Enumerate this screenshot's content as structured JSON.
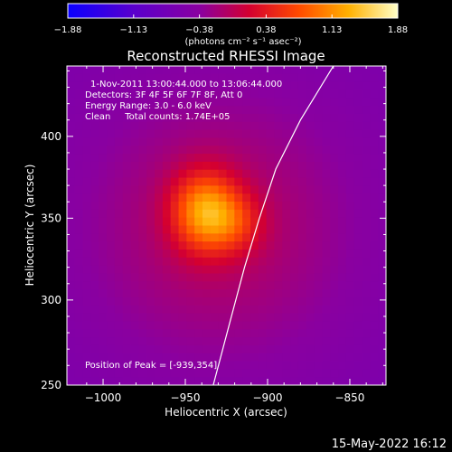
{
  "chart_data": {
    "type": "heatmap",
    "title": "Reconstructed RHESSI Image",
    "xlabel": "Heliocentric X (arcsec)",
    "ylabel": "Heliocentric Y (arcsec)",
    "xlim": [
      -1022,
      -828
    ],
    "ylim": [
      248,
      443
    ],
    "x_ticks": [
      -1000,
      -950,
      -900,
      -850
    ],
    "y_ticks": [
      300,
      350,
      400
    ],
    "colorbar": {
      "min": -1.88,
      "max": 1.88,
      "ticks": [
        -1.88,
        -1.13,
        -0.38,
        0.38,
        1.13,
        1.88
      ],
      "tick_labels": [
        "-1.88",
        "-1.13",
        "-0.38",
        "0.38",
        "1.13",
        "1.88"
      ],
      "units_label": "(photons cm⁻² s⁻¹ asec⁻²)",
      "colormap": "fire"
    },
    "annotations": [
      "1-Nov-2011 13:00:44.000 to 13:06:44.000",
      "Detectors: 3F 4F 5F 6F 7F 8F, Att 0",
      "Energy Range: 3.0 - 6.0 keV",
      "Clean     Total counts: 1.74E+05"
    ],
    "peak_label": "Position of Peak = [-939,354]",
    "peak_position": [
      -939,
      354
    ],
    "sources": [
      {
        "x": -938,
        "y": 354,
        "sx": 14,
        "sy": 17,
        "amp": 1.35
      },
      {
        "x": -919,
        "y": 347,
        "sx": 12,
        "sy": 13,
        "amp": 0.5
      }
    ],
    "halo": {
      "x": -930,
      "y": 345,
      "sx": 62,
      "sy": 64,
      "amp": 0.55
    },
    "background": -0.6,
    "limb_curve": [
      [
        -933,
        248
      ],
      [
        -922,
        290
      ],
      [
        -914,
        320
      ],
      [
        -905,
        350
      ],
      [
        -895,
        380
      ],
      [
        -880,
        410
      ],
      [
        -860,
        443
      ]
    ],
    "grid": false,
    "legend": "none"
  },
  "footer": {
    "timestamp": "15-May-2022 16:12"
  }
}
